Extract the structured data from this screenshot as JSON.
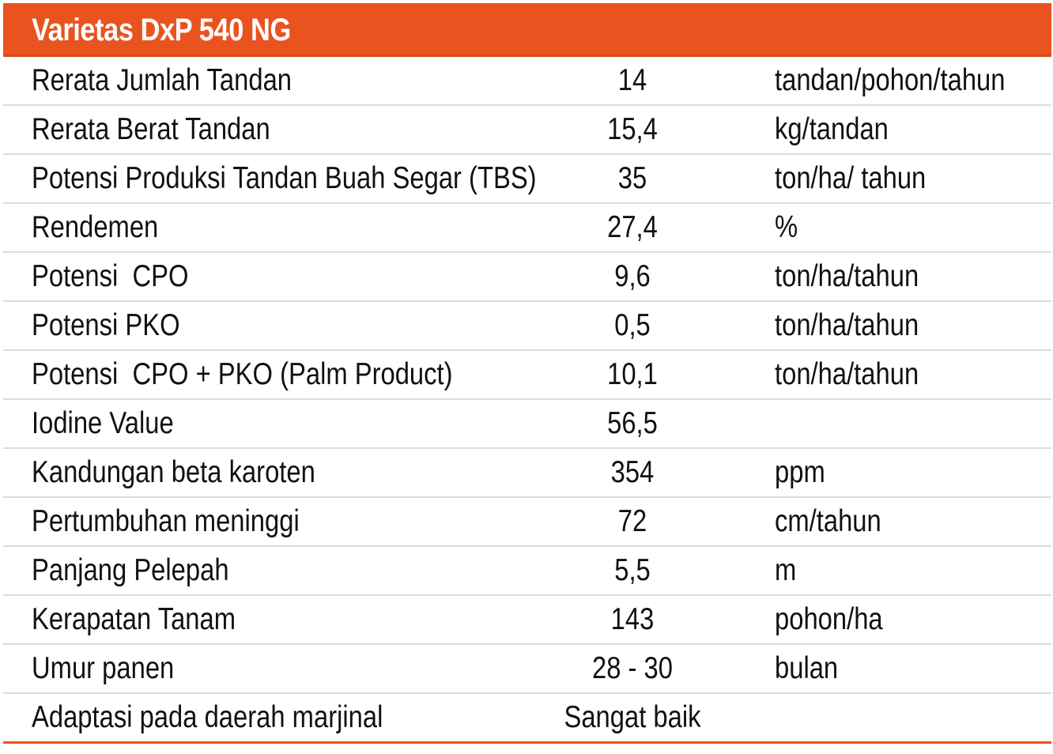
{
  "table": {
    "title": "Varietas DxP 540 NG",
    "rows": [
      {
        "label": "Rerata Jumlah Tandan",
        "value": "14",
        "unit": "tandan/pohon/tahun"
      },
      {
        "label": "Rerata Berat Tandan",
        "value": "15,4",
        "unit": "kg/tandan"
      },
      {
        "label": "Potensi Produksi Tandan Buah Segar (TBS)",
        "value": "35",
        "unit": "ton/ha/ tahun"
      },
      {
        "label": "Rendemen",
        "value": "27,4",
        "unit": "%"
      },
      {
        "label": "Potensi  CPO",
        "value": "9,6",
        "unit": "ton/ha/tahun"
      },
      {
        "label": "Potensi PKO",
        "value": "0,5",
        "unit": "ton/ha/tahun"
      },
      {
        "label": "Potensi  CPO + PKO (Palm Product)",
        "value": "10,1",
        "unit": "ton/ha/tahun"
      },
      {
        "label": "Iodine Value",
        "value": "56,5",
        "unit": ""
      },
      {
        "label": "Kandungan beta karoten",
        "value": "354",
        "unit": "ppm"
      },
      {
        "label": "Pertumbuhan meninggi",
        "value": "72",
        "unit": "cm/tahun"
      },
      {
        "label": "Panjang Pelepah",
        "value": "5,5",
        "unit": "m"
      },
      {
        "label": "Kerapatan Tanam",
        "value": "143",
        "unit": "pohon/ha"
      },
      {
        "label": "Umur panen",
        "value": "28 - 30",
        "unit": "bulan"
      },
      {
        "label": "Adaptasi pada daerah marjinal",
        "value": "Sangat baik",
        "unit": ""
      }
    ]
  },
  "colors": {
    "header_background": "#e8531f",
    "header_text": "#ffffff",
    "row_divider": "#dcdcdc",
    "bottom_rule": "#e8531f"
  }
}
